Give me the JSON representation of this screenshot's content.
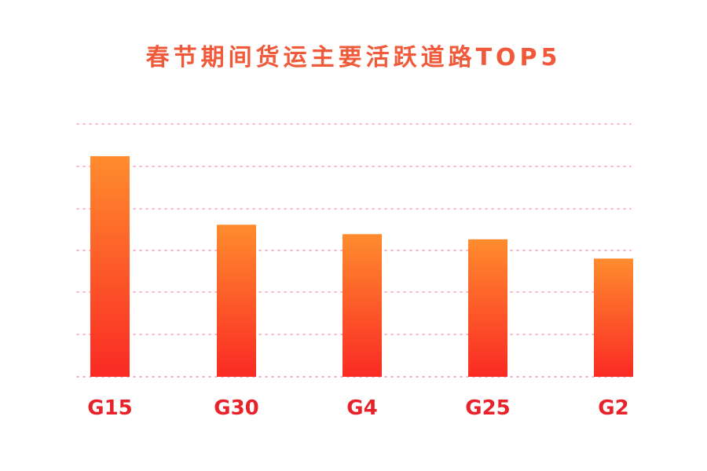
{
  "chart_data": {
    "type": "bar",
    "title": "春节期间货运主要活跃道路TOP5",
    "categories": [
      "G15",
      "G30",
      "G4",
      "G25",
      "G2"
    ],
    "values": [
      5.15,
      3.55,
      3.33,
      3.21,
      2.76
    ],
    "ylim": [
      0,
      5.9
    ],
    "grid": true,
    "legend": "none",
    "xlabel": "",
    "ylabel": "",
    "colors": {
      "title": "#f05a3a",
      "bar_top": "#ff8c2e",
      "bar_bottom": "#fa2a24",
      "tick_label": "#e8222a",
      "grid": "#f6b8c4"
    }
  }
}
